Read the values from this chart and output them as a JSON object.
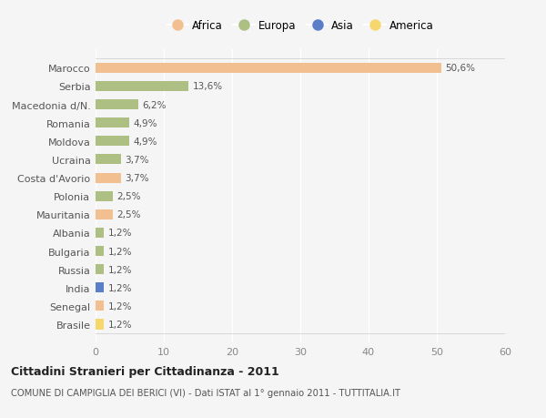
{
  "countries": [
    "Marocco",
    "Serbia",
    "Macedonia d/N.",
    "Romania",
    "Moldova",
    "Ucraina",
    "Costa d'Avorio",
    "Polonia",
    "Mauritania",
    "Albania",
    "Bulgaria",
    "Russia",
    "India",
    "Senegal",
    "Brasile"
  ],
  "values": [
    50.6,
    13.6,
    6.2,
    4.9,
    4.9,
    3.7,
    3.7,
    2.5,
    2.5,
    1.2,
    1.2,
    1.2,
    1.2,
    1.2,
    1.2
  ],
  "labels": [
    "50,6%",
    "13,6%",
    "6,2%",
    "4,9%",
    "4,9%",
    "3,7%",
    "3,7%",
    "2,5%",
    "2,5%",
    "1,2%",
    "1,2%",
    "1,2%",
    "1,2%",
    "1,2%",
    "1,2%"
  ],
  "colors": [
    "#F2C090",
    "#ADBF82",
    "#ADBF82",
    "#ADBF82",
    "#ADBF82",
    "#ADBF82",
    "#F2C090",
    "#ADBF82",
    "#F2C090",
    "#ADBF82",
    "#ADBF82",
    "#ADBF82",
    "#5B7EC9",
    "#F2C090",
    "#F5D76E"
  ],
  "legend_labels": [
    "Africa",
    "Europa",
    "Asia",
    "America"
  ],
  "legend_colors": [
    "#F2C090",
    "#ADBF82",
    "#5B7EC9",
    "#F5D76E"
  ],
  "xlim": [
    0,
    60
  ],
  "xticks": [
    0,
    10,
    20,
    30,
    40,
    50,
    60
  ],
  "title_bold": "Cittadini Stranieri per Cittadinanza - 2011",
  "subtitle": "COMUNE DI CAMPIGLIA DEI BERICI (VI) - Dati ISTAT al 1° gennaio 2011 - TUTTITALIA.IT",
  "background_color": "#F5F5F5",
  "bar_height": 0.55
}
